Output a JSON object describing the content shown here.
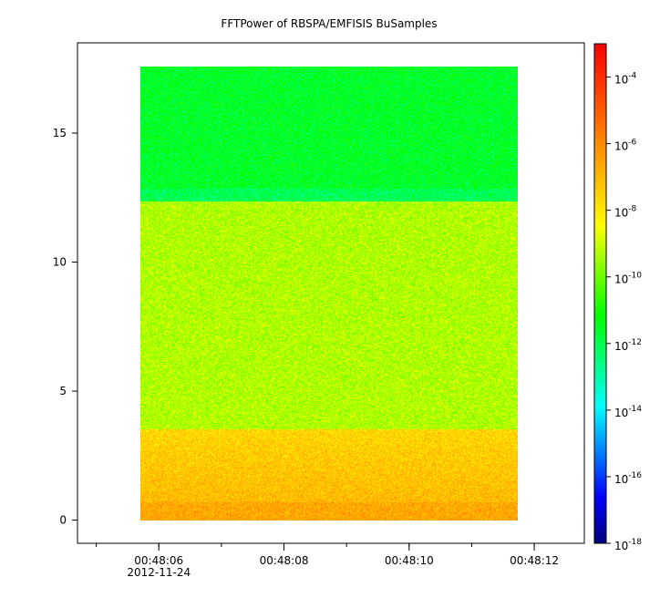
{
  "chart_data": {
    "type": "heatmap",
    "title": "FFTPower of RBSPA/EMFISIS  BuSamples",
    "xlabel": "",
    "ylabel": "",
    "x_ticks": [
      {
        "label": "00:48:06",
        "t": 6,
        "sublabel": "2012-11-24"
      },
      {
        "label": "00:48:08",
        "t": 8
      },
      {
        "label": "00:48:10",
        "t": 10
      },
      {
        "label": "00:48:12",
        "t": 12
      }
    ],
    "x_minor_every_s": 1,
    "xlim_seconds_after_00_48_00": [
      4.7,
      12.8
    ],
    "data_x_range_seconds": [
      5.85,
      11.8
    ],
    "y_ticks": [
      0,
      5,
      10,
      15
    ],
    "ylim": [
      -0.9,
      18.5
    ],
    "data_y_range": [
      0,
      17.5
    ],
    "colorbar": {
      "scale": "log",
      "range": [
        1e-18,
        0.001
      ],
      "tick_base": "10",
      "tick_exponents": [
        -4,
        -6,
        -8,
        -10,
        -12,
        -14,
        -16,
        -18
      ],
      "colormap": [
        "#00007f",
        "#0000ff",
        "#007fff",
        "#00ffff",
        "#00ff7f",
        "#00ff00",
        "#7fff00",
        "#ffff00",
        "#ffbf00",
        "#ff7f00",
        "#ff3f00",
        "#ff0000"
      ]
    },
    "bands": [
      {
        "y_range": [
          12.3,
          17.5
        ],
        "log10_power": -11.6
      },
      {
        "y_range": [
          3.5,
          12.3
        ],
        "log10_power": -9.3
      },
      {
        "y_range": [
          0.7,
          3.5
        ],
        "log10_power": -7.6
      },
      {
        "y_range": [
          0,
          0.7
        ],
        "log10_power": -6.6
      }
    ]
  }
}
